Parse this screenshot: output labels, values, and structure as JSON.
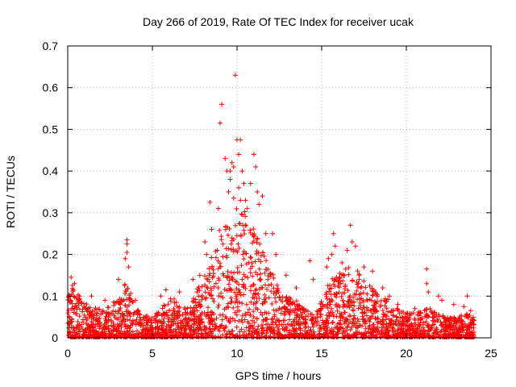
{
  "chart_data": {
    "type": "scatter",
    "title": "Day 266 of 2019, Rate Of TEC Index for receiver ucak",
    "xlabel": "GPS time / hours",
    "ylabel": "ROTI / TECUs",
    "xlim": [
      0,
      25
    ],
    "ylim": [
      0,
      0.7
    ],
    "grid": true,
    "marker": "+",
    "color": "#ff0000",
    "x_ticks": [
      "0",
      "5",
      "10",
      "15",
      "20",
      "25"
    ],
    "y_ticks": [
      "0",
      "0.1",
      "0.2",
      "0.3",
      "0.4",
      "0.5",
      "0.6",
      "0.7"
    ],
    "x_tick_values": [
      0,
      5,
      10,
      15,
      20,
      25
    ],
    "y_tick_values": [
      0,
      0.1,
      0.2,
      0.3,
      0.4,
      0.5,
      0.6,
      0.7
    ],
    "envelope": {
      "x": [
        0.0,
        0.3,
        0.8,
        1.5,
        2.5,
        3.0,
        3.5,
        4.0,
        4.8,
        5.5,
        6.0,
        6.8,
        7.5,
        8.0,
        8.5,
        9.0,
        9.5,
        10.0,
        10.5,
        11.0,
        11.5,
        12.0,
        12.5,
        13.0,
        13.5,
        14.0,
        14.5,
        15.0,
        15.5,
        16.0,
        16.5,
        17.0,
        17.5,
        18.0,
        18.5,
        19.0,
        19.5,
        20.0,
        20.5,
        21.0,
        21.5,
        22.0,
        22.5,
        23.0,
        23.5,
        24.0
      ],
      "y": [
        0.1,
        0.13,
        0.09,
        0.07,
        0.08,
        0.1,
        0.14,
        0.07,
        0.05,
        0.07,
        0.11,
        0.07,
        0.1,
        0.15,
        0.2,
        0.27,
        0.3,
        0.33,
        0.3,
        0.27,
        0.21,
        0.17,
        0.12,
        0.1,
        0.09,
        0.07,
        0.06,
        0.09,
        0.14,
        0.16,
        0.18,
        0.17,
        0.14,
        0.12,
        0.11,
        0.09,
        0.07,
        0.06,
        0.06,
        0.07,
        0.07,
        0.06,
        0.05,
        0.05,
        0.06,
        0.05
      ]
    },
    "peaks": [
      {
        "x": 0.2,
        "y": 0.145
      },
      {
        "x": 0.4,
        "y": 0.13
      },
      {
        "x": 0.7,
        "y": 0.1
      },
      {
        "x": 1.4,
        "y": 0.1
      },
      {
        "x": 2.2,
        "y": 0.09
      },
      {
        "x": 3.0,
        "y": 0.14
      },
      {
        "x": 3.5,
        "y": 0.235
      },
      {
        "x": 3.5,
        "y": 0.225
      },
      {
        "x": 3.5,
        "y": 0.205
      },
      {
        "x": 3.4,
        "y": 0.19
      },
      {
        "x": 3.6,
        "y": 0.17
      },
      {
        "x": 4.0,
        "y": 0.09
      },
      {
        "x": 5.5,
        "y": 0.1
      },
      {
        "x": 5.8,
        "y": 0.115
      },
      {
        "x": 6.6,
        "y": 0.11
      },
      {
        "x": 7.4,
        "y": 0.14
      },
      {
        "x": 7.8,
        "y": 0.15
      },
      {
        "x": 8.1,
        "y": 0.23
      },
      {
        "x": 8.2,
        "y": 0.2
      },
      {
        "x": 8.4,
        "y": 0.325
      },
      {
        "x": 8.5,
        "y": 0.26
      },
      {
        "x": 8.9,
        "y": 0.31
      },
      {
        "x": 9.1,
        "y": 0.56
      },
      {
        "x": 9.0,
        "y": 0.515
      },
      {
        "x": 9.3,
        "y": 0.43
      },
      {
        "x": 9.4,
        "y": 0.4
      },
      {
        "x": 9.6,
        "y": 0.4
      },
      {
        "x": 9.7,
        "y": 0.42
      },
      {
        "x": 9.8,
        "y": 0.41
      },
      {
        "x": 9.6,
        "y": 0.38
      },
      {
        "x": 9.5,
        "y": 0.35
      },
      {
        "x": 9.8,
        "y": 0.335
      },
      {
        "x": 9.9,
        "y": 0.63
      },
      {
        "x": 10.0,
        "y": 0.475
      },
      {
        "x": 10.2,
        "y": 0.475
      },
      {
        "x": 10.1,
        "y": 0.44
      },
      {
        "x": 10.3,
        "y": 0.4
      },
      {
        "x": 10.4,
        "y": 0.37
      },
      {
        "x": 10.1,
        "y": 0.36
      },
      {
        "x": 10.2,
        "y": 0.33
      },
      {
        "x": 10.5,
        "y": 0.33
      },
      {
        "x": 10.6,
        "y": 0.31
      },
      {
        "x": 10.8,
        "y": 0.37
      },
      {
        "x": 11.0,
        "y": 0.44
      },
      {
        "x": 11.1,
        "y": 0.41
      },
      {
        "x": 11.2,
        "y": 0.35
      },
      {
        "x": 11.3,
        "y": 0.32
      },
      {
        "x": 11.5,
        "y": 0.34
      },
      {
        "x": 11.7,
        "y": 0.25
      },
      {
        "x": 12.1,
        "y": 0.25
      },
      {
        "x": 12.3,
        "y": 0.2
      },
      {
        "x": 12.9,
        "y": 0.15
      },
      {
        "x": 13.5,
        "y": 0.12
      },
      {
        "x": 14.3,
        "y": 0.185
      },
      {
        "x": 14.5,
        "y": 0.14
      },
      {
        "x": 15.3,
        "y": 0.17
      },
      {
        "x": 15.4,
        "y": 0.19
      },
      {
        "x": 15.7,
        "y": 0.25
      },
      {
        "x": 15.8,
        "y": 0.22
      },
      {
        "x": 15.6,
        "y": 0.2
      },
      {
        "x": 16.2,
        "y": 0.18
      },
      {
        "x": 16.5,
        "y": 0.21
      },
      {
        "x": 16.7,
        "y": 0.27
      },
      {
        "x": 16.8,
        "y": 0.23
      },
      {
        "x": 17.0,
        "y": 0.22
      },
      {
        "x": 17.5,
        "y": 0.17
      },
      {
        "x": 18.0,
        "y": 0.16
      },
      {
        "x": 18.6,
        "y": 0.12
      },
      {
        "x": 19.0,
        "y": 0.1
      },
      {
        "x": 19.5,
        "y": 0.08
      },
      {
        "x": 20.5,
        "y": 0.07
      },
      {
        "x": 21.2,
        "y": 0.165
      },
      {
        "x": 21.2,
        "y": 0.13
      },
      {
        "x": 21.3,
        "y": 0.11
      },
      {
        "x": 21.9,
        "y": 0.1
      },
      {
        "x": 22.1,
        "y": 0.09
      },
      {
        "x": 22.8,
        "y": 0.08
      },
      {
        "x": 23.4,
        "y": 0.075
      },
      {
        "x": 23.6,
        "y": 0.1
      },
      {
        "x": 23.8,
        "y": 0.065
      }
    ]
  }
}
